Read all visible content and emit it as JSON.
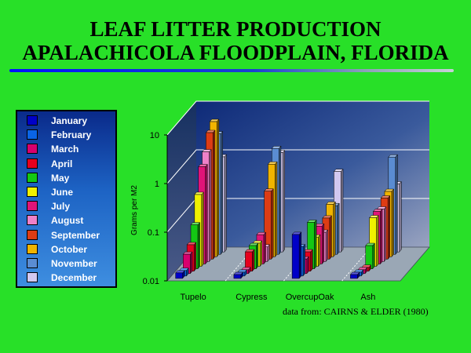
{
  "title": {
    "line1": "LEAF LITTER PRODUCTION",
    "line2": "APALACHICOLA FLOODPLAIN, FLORIDA"
  },
  "source_note": "data from: CAIRNS & ELDER (1980)",
  "colors": {
    "background": "#28e028",
    "title_rule": "#0010ff",
    "legend_bg": "#1d63c4",
    "back_wall": "#24488c",
    "floor": "#9aa7b5"
  },
  "chart_data": {
    "type": "bar",
    "title": "",
    "xlabel": "",
    "ylabel": "Grams per M2",
    "yscale": "log",
    "ylim": [
      0.01,
      10
    ],
    "yticks": [
      0.01,
      0.1,
      1,
      10
    ],
    "ytick_labels": [
      "0.01",
      "0.1",
      "1",
      "10"
    ],
    "grid": true,
    "legend_position": "left",
    "categories": [
      "Tupelo",
      "Cypress",
      "OvercupOak",
      "Ash"
    ],
    "series": [
      {
        "name": "January",
        "color": "#0000c8",
        "values": [
          0.013,
          0.012,
          0.08,
          0.012
        ]
      },
      {
        "name": "February",
        "color": "#0a64e6",
        "values": [
          0.013,
          0.012,
          0.04,
          0.012
        ]
      },
      {
        "name": "March",
        "color": "#d8006e",
        "values": [
          0.025,
          0.012,
          0.02,
          0.012
        ]
      },
      {
        "name": "April",
        "color": "#e6001e",
        "values": [
          0.035,
          0.025,
          0.025,
          0.012
        ]
      },
      {
        "name": "May",
        "color": "#14c814",
        "values": [
          0.08,
          0.03,
          0.09,
          0.03
        ]
      },
      {
        "name": "June",
        "color": "#f0f000",
        "values": [
          0.3,
          0.03,
          0.04,
          0.1
        ]
      },
      {
        "name": "July",
        "color": "#e01478",
        "values": [
          1.0,
          0.04,
          0.06,
          0.12
        ]
      },
      {
        "name": "August",
        "color": "#ee80c8",
        "values": [
          1.8,
          0.02,
          0.04,
          0.12
        ]
      },
      {
        "name": "September",
        "color": "#dd3c14",
        "values": [
          4.0,
          0.25,
          0.07,
          0.18
        ]
      },
      {
        "name": "October",
        "color": "#f0b400",
        "values": [
          6.0,
          0.8,
          0.12,
          0.22
        ]
      },
      {
        "name": "November",
        "color": "#5a8cd2",
        "values": [
          3.0,
          1.5,
          0.1,
          1.0
        ]
      },
      {
        "name": "December",
        "color": "#d2c8f0",
        "values": [
          0.9,
          1.1,
          0.45,
          0.25
        ]
      }
    ]
  }
}
